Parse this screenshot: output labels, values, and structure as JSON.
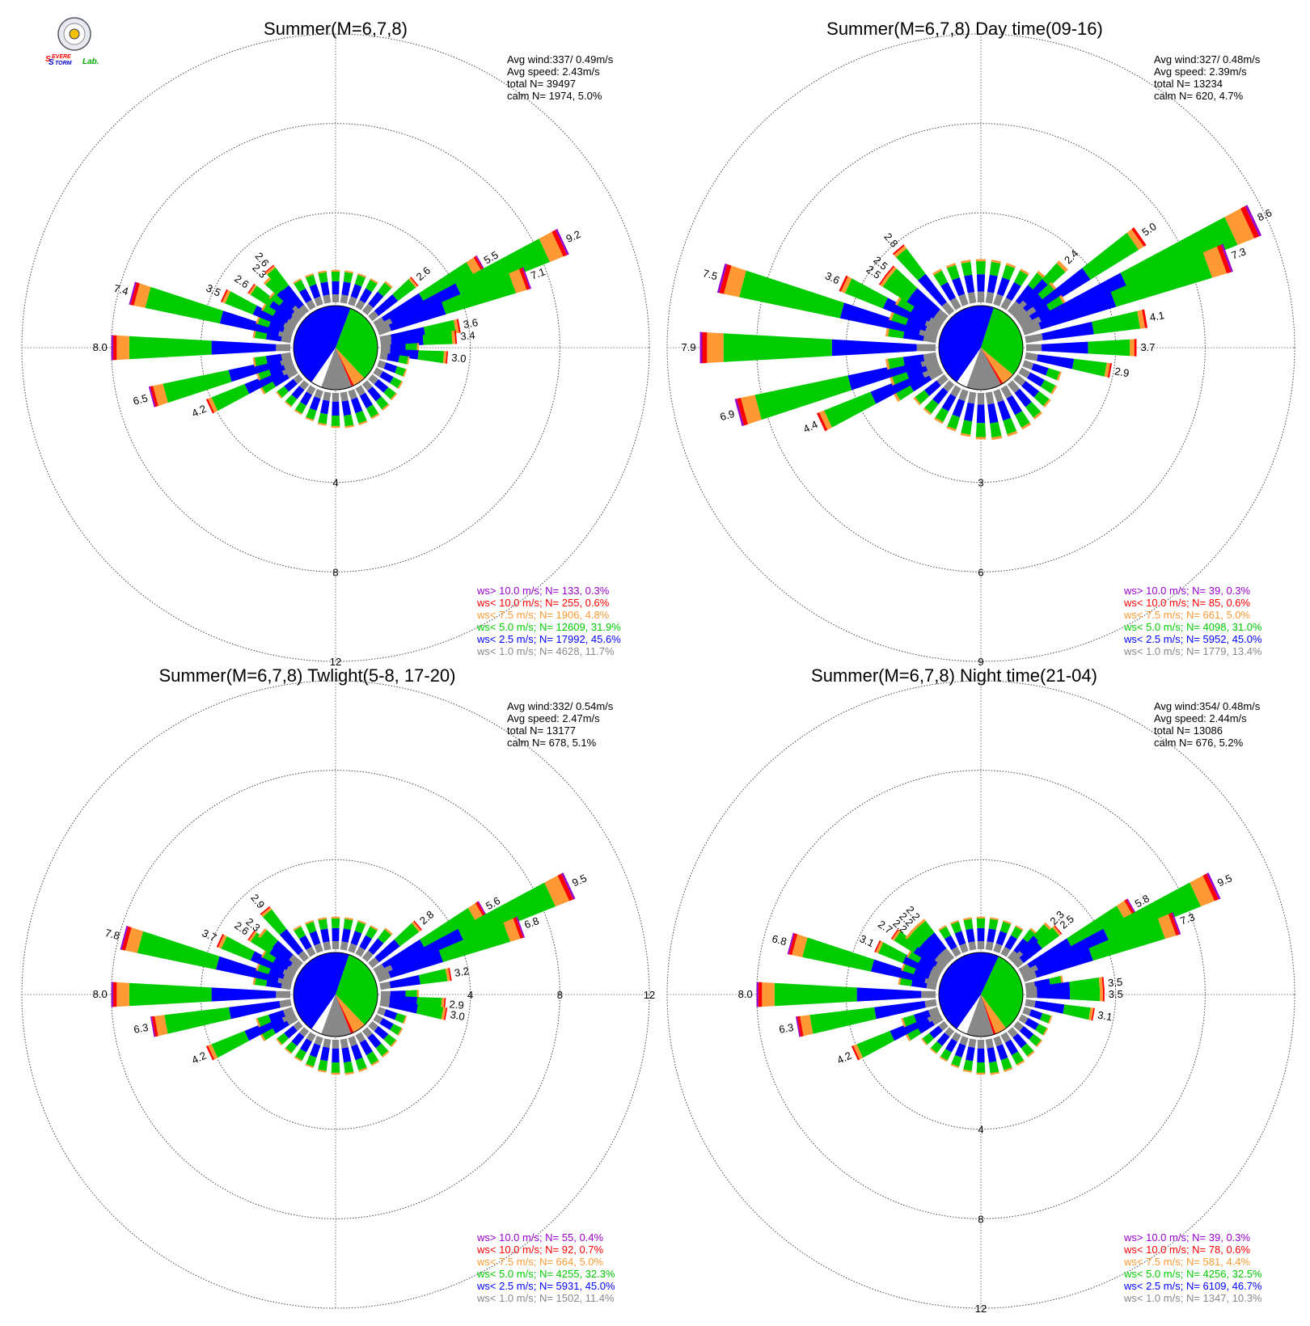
{
  "logo": {
    "icon": "severe-storm-lab-logo",
    "text_parts": [
      "S",
      "EVERE",
      "S",
      "TORM",
      "Lab."
    ]
  },
  "colors": {
    "ws10plus": "#9900cc",
    "ws10": "#ff0000",
    "ws7_5": "#ff9933",
    "ws5": "#00cc00",
    "ws2_5": "#0000ff",
    "ws1": "#888888"
  },
  "chart_data": [
    {
      "type": "windrose",
      "title": "Summer(M=6,7,8)",
      "stats": [
        "Avg wind:337/ 0.49m/s",
        "Avg speed: 2.43m/s",
        "total N=      39497",
        "calm N=   1974,   5.0%"
      ],
      "rings": [
        4,
        8,
        12
      ],
      "ring_label_dir": "bottom",
      "legend": [
        "ws> 10.0 m/s; N=    133,  0.3%",
        "ws< 10.0 m/s; N=    255,  0.6%",
        "ws<  7.5 m/s; N=   1906,  4.8%",
        "ws<  5.0 m/s; N= 12609, 31.9%",
        "ws<  2.5 m/s; N= 17992, 45.6%",
        "ws<  1.0 m/s; N=   4628, 11.7%"
      ],
      "pie": [
        45.6,
        31.9,
        4.8,
        0.9,
        11.7
      ],
      "labeled": [
        {
          "dir": 60,
          "value": 5.5
        },
        {
          "dir": 65,
          "value": 9.2
        },
        {
          "dir": 70,
          "value": 7.1
        },
        {
          "dir": 80,
          "value": 3.6
        },
        {
          "dir": 85,
          "value": 3.4
        },
        {
          "dir": 95,
          "value": 3.0
        },
        {
          "dir": 50,
          "value": 2.6
        },
        {
          "dir": 245,
          "value": 4.2
        },
        {
          "dir": 255,
          "value": 6.5
        },
        {
          "dir": 270,
          "value": 8.0
        },
        {
          "dir": 285,
          "value": 7.4
        },
        {
          "dir": 295,
          "value": 3.5
        },
        {
          "dir": 305,
          "value": 2.6
        },
        {
          "dir": 315,
          "value": 2.3
        },
        {
          "dir": 320,
          "value": 2.6
        }
      ]
    },
    {
      "type": "windrose",
      "title": "Summer(M=6,7,8) Day time(09-16)",
      "stats": [
        "Avg wind:327/ 0.48m/s",
        "Avg speed: 2.39m/s",
        "total N=      13234",
        "calm N=    620,   4.7%"
      ],
      "rings": [
        3,
        6,
        9
      ],
      "ring_label_dir": "bottom",
      "legend": [
        "ws> 10.0 m/s; N=     39,  0.3%",
        "ws< 10.0 m/s; N=     85,  0.6%",
        "ws<  7.5 m/s; N=    661,  5.0%",
        "ws<  5.0 m/s; N=   4098, 31.0%",
        "ws<  2.5 m/s; N=   5952, 45.0%",
        "ws<  1.0 m/s; N=   1779, 13.4%"
      ],
      "pie": [
        45.0,
        31.0,
        5.0,
        0.9,
        13.4
      ],
      "labeled": [
        {
          "dir": 45,
          "value": 2.4
        },
        {
          "dir": 55,
          "value": 5.0
        },
        {
          "dir": 65,
          "value": 8.6
        },
        {
          "dir": 72,
          "value": 7.3
        },
        {
          "dir": 80,
          "value": 4.1
        },
        {
          "dir": 88,
          "value": 3.7
        },
        {
          "dir": 100,
          "value": 2.9
        },
        {
          "dir": 245,
          "value": 4.4
        },
        {
          "dir": 255,
          "value": 6.9
        },
        {
          "dir": 270,
          "value": 7.9
        },
        {
          "dir": 285,
          "value": 7.5
        },
        {
          "dir": 295,
          "value": 3.6
        },
        {
          "dir": 305,
          "value": 2.5
        },
        {
          "dir": 310,
          "value": 2.5
        },
        {
          "dir": 320,
          "value": 2.8
        }
      ]
    },
    {
      "type": "windrose",
      "title": "Summer(M=6,7,8) Twlight(5-8, 17-20)",
      "stats": [
        "Avg wind:332/ 0.54m/s",
        "Avg speed: 2.47m/s",
        "total N=      13177",
        "calm N=    678,   5.1%"
      ],
      "rings": [
        4,
        8,
        12
      ],
      "ring_label_dir": "right",
      "legend": [
        "ws> 10.0 m/s; N=     55,  0.4%",
        "ws< 10.0 m/s; N=     92,  0.7%",
        "ws<  7.5 m/s; N=    664,  5.0%",
        "ws<  5.0 m/s; N=   4255, 32.3%",
        "ws<  2.5 m/s; N=   5931, 45.0%",
        "ws<  1.0 m/s; N=   1502, 11.4%"
      ],
      "pie": [
        45.0,
        32.3,
        5.0,
        1.1,
        11.4
      ],
      "labeled": [
        {
          "dir": 50,
          "value": 2.8
        },
        {
          "dir": 60,
          "value": 5.6
        },
        {
          "dir": 65,
          "value": 9.5
        },
        {
          "dir": 72,
          "value": 6.8
        },
        {
          "dir": 82,
          "value": 3.2
        },
        {
          "dir": 95,
          "value": 2.9
        },
        {
          "dir": 98,
          "value": 3.0
        },
        {
          "dir": 245,
          "value": 4.2
        },
        {
          "dir": 258,
          "value": 6.3
        },
        {
          "dir": 270,
          "value": 8.0
        },
        {
          "dir": 285,
          "value": 7.8
        },
        {
          "dir": 295,
          "value": 3.7
        },
        {
          "dir": 305,
          "value": 2.6
        },
        {
          "dir": 310,
          "value": 2.3
        },
        {
          "dir": 318,
          "value": 2.9
        }
      ]
    },
    {
      "type": "windrose",
      "title": "Summer(M=6,7,8) Night time(21-04)",
      "stats": [
        "Avg wind:354/ 0.48m/s",
        "Avg speed: 2.44m/s",
        "total N=      13086",
        "calm N=    676,   5.2%"
      ],
      "rings": [
        4,
        8,
        12
      ],
      "ring_label_dir": "bottom",
      "legend": [
        "ws> 10.0 m/s; N=     39,  0.3%",
        "ws< 10.0 m/s; N=     78,  0.6%",
        "ws<  7.5 m/s; N=    581,  4.4%",
        "ws<  5.0 m/s; N=   4256, 32.5%",
        "ws<  2.5 m/s; N=   6109, 46.7%",
        "ws<  1.0 m/s; N=   1347, 10.3%"
      ],
      "pie": [
        46.7,
        32.5,
        4.4,
        0.9,
        10.3
      ],
      "labeled": [
        {
          "dir": 45,
          "value": 2.3
        },
        {
          "dir": 48,
          "value": 2.5
        },
        {
          "dir": 58,
          "value": 5.8
        },
        {
          "dir": 65,
          "value": 9.5
        },
        {
          "dir": 72,
          "value": 7.3
        },
        {
          "dir": 85,
          "value": 3.5
        },
        {
          "dir": 90,
          "value": 3.5
        },
        {
          "dir": 100,
          "value": 3.1
        },
        {
          "dir": 245,
          "value": 4.2
        },
        {
          "dir": 258,
          "value": 6.3
        },
        {
          "dir": 270,
          "value": 8.0
        },
        {
          "dir": 285,
          "value": 6.8
        },
        {
          "dir": 295,
          "value": 3.1
        },
        {
          "dir": 305,
          "value": 2.7
        },
        {
          "dir": 312,
          "value": 2.2
        },
        {
          "dir": 316,
          "value": 2.2
        },
        {
          "dir": 320,
          "value": 2.2
        }
      ]
    }
  ]
}
